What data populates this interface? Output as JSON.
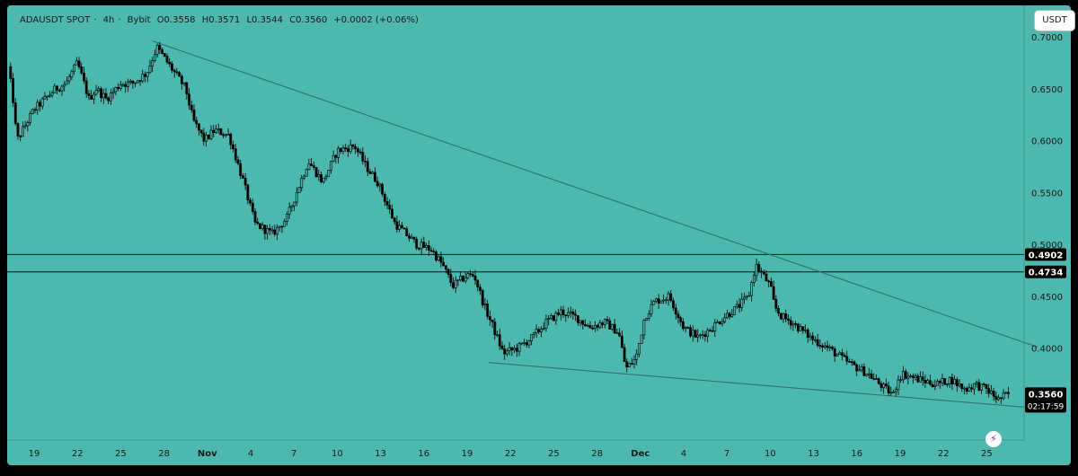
{
  "header": {
    "symbol": "ADAUSDT SPOT",
    "interval": "4h",
    "exchange": "Bybit",
    "open": "O0.3558",
    "high": "H0.3571",
    "low": "L0.3544",
    "close": "C0.3560",
    "change": "+0.0002 (+0.06%)"
  },
  "currency_button": "USDT",
  "lightning_icon": "lightning-icon",
  "colors": {
    "background": "#4db8ad",
    "candle": "#000000",
    "price_tag": "#000000",
    "price_tag_text": "#ffffff"
  },
  "chart_data": {
    "type": "candlestick",
    "y_ticks": [
      "0.7000",
      "0.6500",
      "0.6000",
      "0.5500",
      "0.5000",
      "0.4500",
      "0.4000"
    ],
    "y_tick_values": [
      0.7,
      0.65,
      0.6,
      0.55,
      0.5,
      0.45,
      0.4
    ],
    "ylim": [
      0.32,
      0.725
    ],
    "x_ticks": [
      "19",
      "22",
      "25",
      "28",
      "Nov",
      "4",
      "7",
      "10",
      "13",
      "16",
      "19",
      "22",
      "25",
      "28",
      "Dec",
      "4",
      "7",
      "10",
      "13",
      "16",
      "19",
      "22",
      "25"
    ],
    "x_tick_index": [
      0,
      3,
      6,
      9,
      12,
      15,
      18,
      21,
      24,
      27,
      30,
      33,
      36,
      39,
      42,
      45,
      48,
      51,
      54,
      57,
      60,
      63,
      66
    ],
    "xlim": [
      -1.5,
      69.5
    ],
    "horizontal_lines": [
      {
        "value": 0.4902,
        "label": "0.4902"
      },
      {
        "value": 0.4734,
        "label": "0.4734"
      }
    ],
    "trendlines": [
      {
        "from": [
          8.2,
          0.696
        ],
        "to": [
          69.5,
          0.401
        ]
      },
      {
        "from": [
          31.5,
          0.386
        ],
        "to": [
          69.5,
          0.342
        ]
      }
    ],
    "last_price": {
      "value": 0.356,
      "label": "0.3560",
      "countdown": "02:17:59"
    },
    "path_days": [
      -1.8,
      -1.5,
      -1.2,
      0,
      1.5,
      2.2,
      3,
      3.8,
      4.3,
      5,
      6,
      6.8,
      7.8,
      8.5,
      9.5,
      10.5,
      11,
      11.8,
      12.5,
      13.5,
      14.5,
      15.3,
      16.5,
      17.5,
      19,
      20,
      21,
      22.2,
      23,
      23.8,
      25,
      26.5,
      27.5,
      28.3,
      29,
      30,
      30.5,
      31.2,
      31.8,
      32.5,
      33.5,
      34.5,
      35.5,
      36.5,
      37.5,
      38.5,
      39.5,
      40.5,
      41,
      41.7,
      42.3,
      43,
      44,
      45,
      46,
      47,
      47.8,
      48.8,
      49.5,
      50,
      50.5,
      51,
      51.3,
      51.8,
      52.5,
      53.8,
      55,
      56.5,
      57.8,
      59,
      59.6,
      59.8,
      60.2,
      61.2,
      62.5,
      63.5,
      64.5,
      65.2,
      66,
      66.8,
      67.5
    ],
    "path_prices": [
      0.67,
      0.645,
      0.6,
      0.63,
      0.65,
      0.655,
      0.675,
      0.64,
      0.65,
      0.64,
      0.655,
      0.655,
      0.665,
      0.69,
      0.67,
      0.65,
      0.62,
      0.6,
      0.61,
      0.605,
      0.56,
      0.52,
      0.51,
      0.525,
      0.58,
      0.56,
      0.59,
      0.595,
      0.575,
      0.56,
      0.52,
      0.5,
      0.495,
      0.48,
      0.46,
      0.47,
      0.47,
      0.44,
      0.42,
      0.395,
      0.4,
      0.41,
      0.425,
      0.435,
      0.43,
      0.42,
      0.425,
      0.415,
      0.38,
      0.39,
      0.43,
      0.445,
      0.45,
      0.42,
      0.41,
      0.42,
      0.43,
      0.44,
      0.45,
      0.48,
      0.47,
      0.46,
      0.44,
      0.43,
      0.425,
      0.41,
      0.4,
      0.385,
      0.375,
      0.36,
      0.355,
      0.37,
      0.375,
      0.37,
      0.365,
      0.37,
      0.36,
      0.365,
      0.36,
      0.35,
      0.356
    ],
    "candle_count": 410
  }
}
